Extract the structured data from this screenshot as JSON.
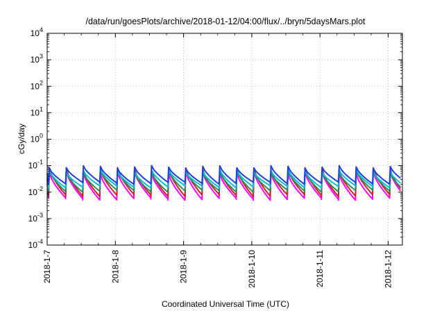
{
  "chart_data": {
    "type": "line",
    "title": "/data/run/goesPlots/archive/2018-01-12/04:00/flux/../bryn/5daysMars.plot",
    "xlabel": "Coordinated Universal Time (UTC)",
    "ylabel": "cGy/day",
    "x_tick_labels": [
      "2018-1-7",
      "2018-1-8",
      "2018-1-9",
      "2018-1-10",
      "2018-1-11",
      "2018-1-12"
    ],
    "y_tick_labels": [
      {
        "base": "10",
        "exp": "-4"
      },
      {
        "base": "10",
        "exp": "-3"
      },
      {
        "base": "10",
        "exp": "-2"
      },
      {
        "base": "10",
        "exp": "-1"
      },
      {
        "base": "10",
        "exp": "0"
      },
      {
        "base": "10",
        "exp": "1"
      },
      {
        "base": "10",
        "exp": "2"
      },
      {
        "base": "10",
        "exp": "3"
      },
      {
        "base": "10",
        "exp": "4"
      }
    ],
    "y_scale": "log",
    "ylim": [
      0.0001,
      10000
    ],
    "xlim": [
      "2018-01-07T00:00",
      "2018-01-12T05:00"
    ],
    "grid": true,
    "sawtooth_period_hours": 6,
    "series": [
      {
        "color": "#ff00ff",
        "peak": 0.055,
        "trough": 0.0055
      },
      {
        "color": "#cc2222",
        "peak": 0.075,
        "trough": 0.0075
      },
      {
        "color": "#2e8b57",
        "peak": 0.06,
        "trough": 0.011
      },
      {
        "color": "#00bcd4",
        "peak": 0.065,
        "trough": 0.016
      },
      {
        "color": "#1f3fd8",
        "peak": 0.09,
        "trough": 0.022
      }
    ]
  }
}
